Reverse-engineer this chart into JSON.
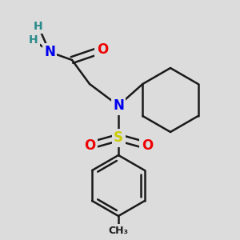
{
  "bg_color": "#dcdcdc",
  "atom_colors": {
    "N": "#0000ee",
    "O": "#ee0000",
    "S": "#cccc00",
    "C": "#1a1a1a",
    "H": "#2a8a8a"
  },
  "bond_color": "#1a1a1a",
  "bond_width": 1.8,
  "figsize": [
    3.0,
    3.0
  ],
  "dpi": 100
}
